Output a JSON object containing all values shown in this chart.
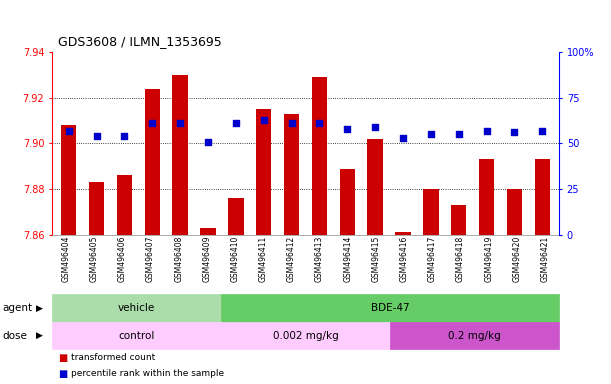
{
  "title": "GDS3608 / ILMN_1353695",
  "samples": [
    "GSM496404",
    "GSM496405",
    "GSM496406",
    "GSM496407",
    "GSM496408",
    "GSM496409",
    "GSM496410",
    "GSM496411",
    "GSM496412",
    "GSM496413",
    "GSM496414",
    "GSM496415",
    "GSM496416",
    "GSM496417",
    "GSM496418",
    "GSM496419",
    "GSM496420",
    "GSM496421"
  ],
  "bar_values": [
    7.908,
    7.883,
    7.886,
    7.924,
    7.93,
    7.863,
    7.876,
    7.915,
    7.913,
    7.929,
    7.889,
    7.902,
    7.861,
    7.88,
    7.873,
    7.893,
    7.88,
    7.893
  ],
  "dot_values": [
    57,
    54,
    54,
    61,
    61,
    51,
    61,
    63,
    61,
    61,
    58,
    59,
    53,
    55,
    55,
    57,
    56,
    57
  ],
  "ylim_left": [
    7.86,
    7.94
  ],
  "ylim_right": [
    0,
    100
  ],
  "yticks_left": [
    7.86,
    7.88,
    7.9,
    7.92,
    7.94
  ],
  "yticks_right": [
    0,
    25,
    50,
    75,
    100
  ],
  "bar_color": "#cc0000",
  "dot_color": "#0000cc",
  "bar_bottom": 7.86,
  "agent_groups": [
    {
      "label": "vehicle",
      "start": 0,
      "end": 6,
      "color": "#aaddaa"
    },
    {
      "label": "BDE-47",
      "start": 6,
      "end": 18,
      "color": "#66cc66"
    }
  ],
  "dose_groups": [
    {
      "label": "control",
      "start": 0,
      "end": 6,
      "color": "#ffccff"
    },
    {
      "label": "0.002 mg/kg",
      "start": 6,
      "end": 12,
      "color": "#ffccff"
    },
    {
      "label": "0.2 mg/kg",
      "start": 12,
      "end": 18,
      "color": "#cc55cc"
    }
  ],
  "legend_items": [
    {
      "label": "transformed count",
      "color": "#cc0000"
    },
    {
      "label": "percentile rank within the sample",
      "color": "#0000cc"
    }
  ],
  "bg_color": "#ffffff",
  "tick_label_fontsize": 7,
  "title_fontsize": 9,
  "bar_label_fontsize": 5.5,
  "row_label_fontsize": 7.5
}
